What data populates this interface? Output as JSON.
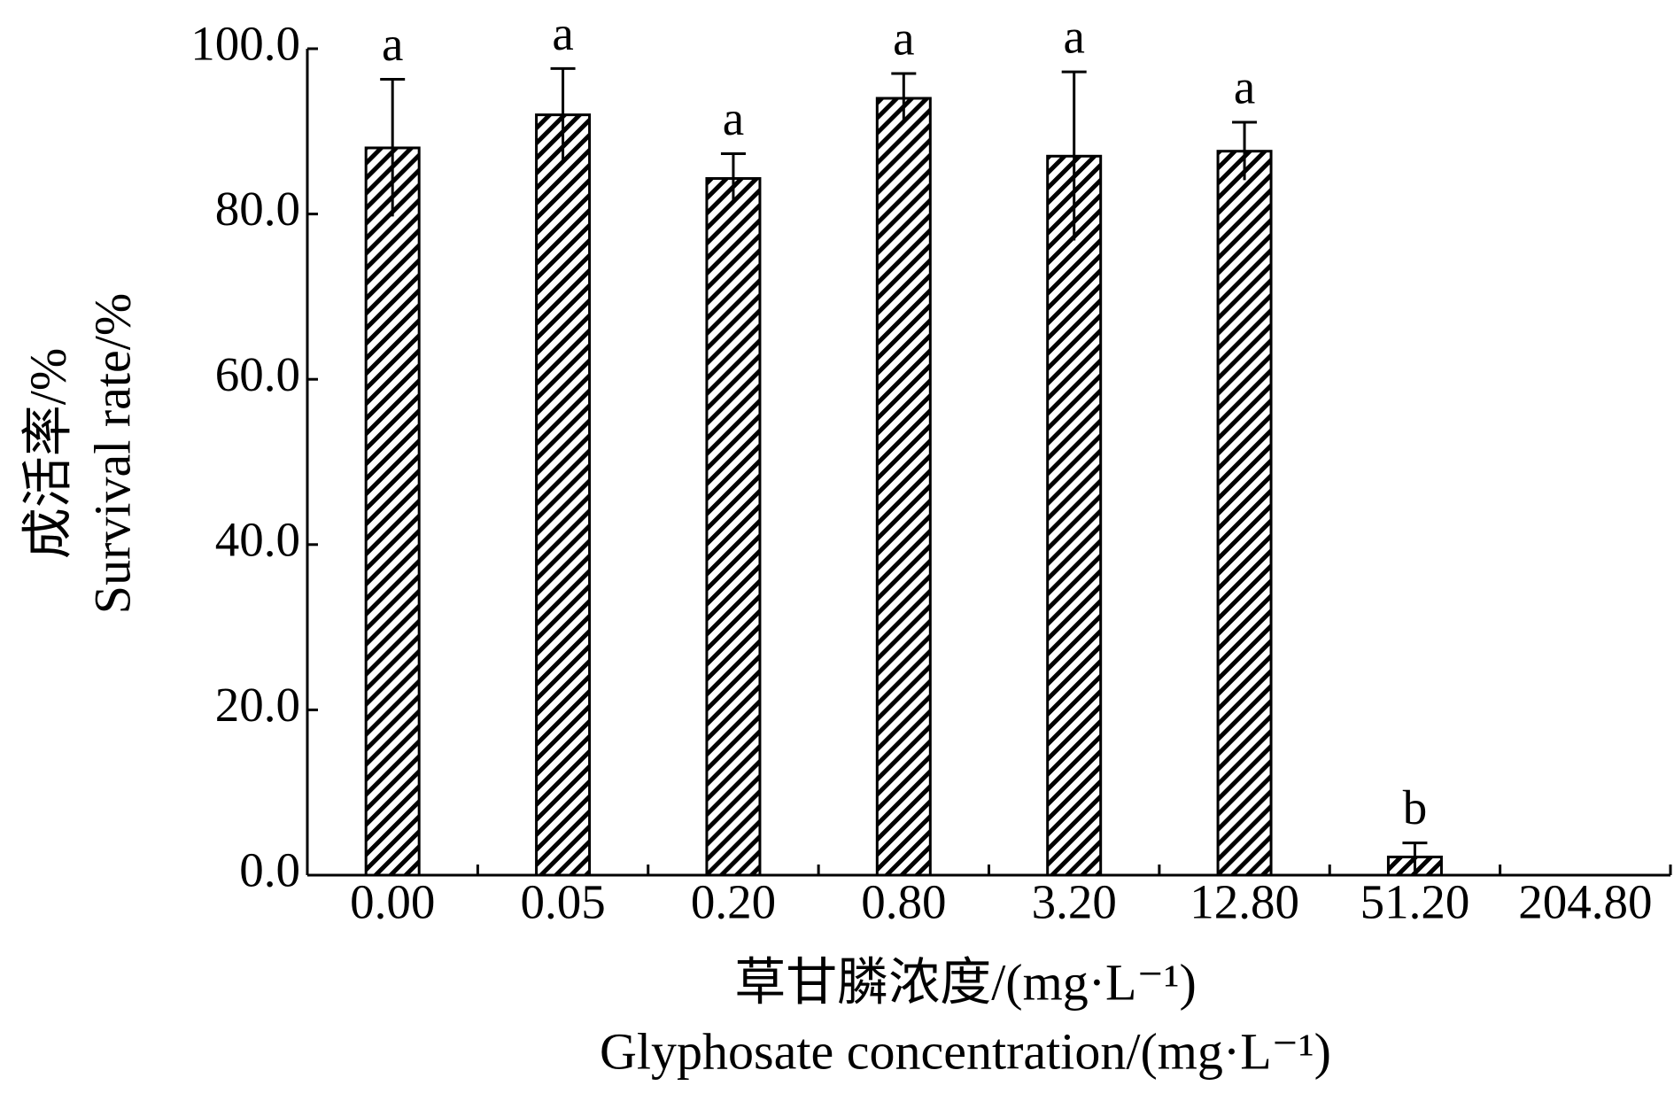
{
  "chart_data": {
    "type": "bar",
    "categories": [
      "0.00",
      "0.05",
      "0.20",
      "0.80",
      "3.20",
      "12.80",
      "51.20",
      "204.80"
    ],
    "values": [
      88.0,
      92.0,
      84.3,
      94.0,
      87.0,
      87.6,
      2.2,
      0
    ],
    "errors": [
      8.3,
      5.6,
      3.0,
      3.0,
      10.2,
      3.5,
      1.7,
      0
    ],
    "labels": [
      "a",
      "a",
      "a",
      "a",
      "a",
      "a",
      "b",
      null
    ],
    "ylim": [
      0,
      100
    ],
    "yticks": [
      {
        "value": 0,
        "label": "0.0"
      },
      {
        "value": 20,
        "label": "20.0"
      },
      {
        "value": 40,
        "label": "40.0"
      },
      {
        "value": 60,
        "label": "60.0"
      },
      {
        "value": 80,
        "label": "80.0"
      },
      {
        "value": 100,
        "label": "100.0"
      }
    ],
    "y_label": [
      "成活率/%",
      "Survival rate/%"
    ],
    "x_label": [
      "草甘膦浓度/(mg·L⁻¹)",
      "Glyphosate concentration/(mg·L⁻¹)"
    ],
    "color": "#000000"
  }
}
